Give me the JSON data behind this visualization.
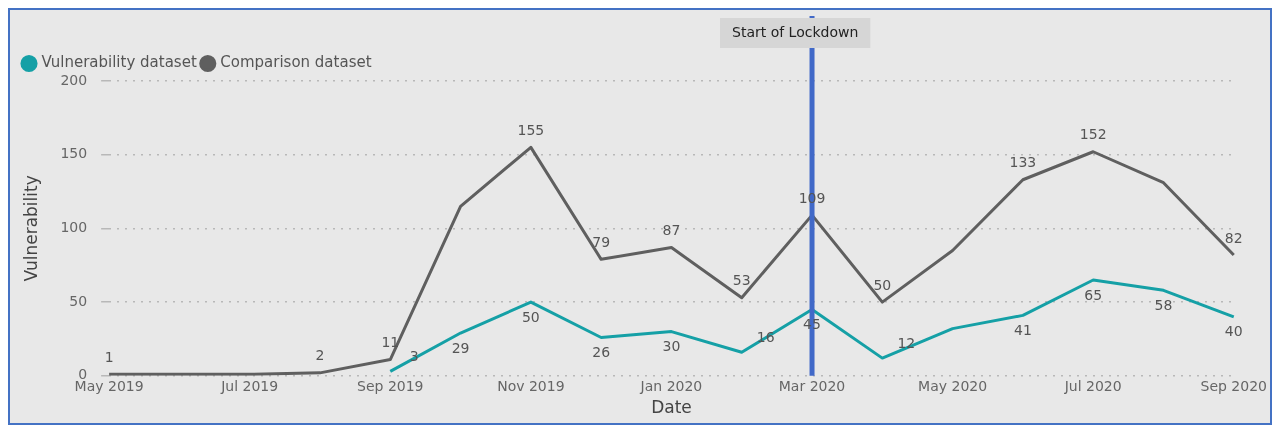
{
  "chart_data": {
    "type": "line",
    "xlabel": "Date",
    "ylabel": "Vulnerability",
    "categories": [
      "May 2019",
      null,
      "Jul 2019",
      null,
      "Sep 2019",
      null,
      "Nov 2019",
      null,
      "Jan 2020",
      null,
      "Mar 2020",
      null,
      "May 2020",
      null,
      "Jul 2020",
      null,
      "Sep 2020"
    ],
    "series": [
      {
        "name": "Vulnerability dataset",
        "color": "#15a0a6",
        "values": [
          null,
          null,
          null,
          null,
          3,
          29,
          50,
          26,
          30,
          16,
          45,
          12,
          32,
          41,
          65,
          58,
          40
        ],
        "value_labels": [
          null,
          null,
          null,
          null,
          "3",
          "29",
          "50",
          "26",
          "30",
          "16",
          "45",
          "12",
          null,
          "41",
          "65",
          "58",
          "40"
        ]
      },
      {
        "name": "Comparison dataset",
        "color": "#5f5f5f",
        "values": [
          1,
          1,
          1,
          2,
          11,
          115,
          155,
          79,
          87,
          53,
          109,
          50,
          85,
          133,
          152,
          131,
          82
        ],
        "value_labels": [
          "1",
          null,
          null,
          "2",
          "11",
          null,
          "155",
          "79",
          "87",
          "53",
          "109",
          "50",
          null,
          "133",
          "152",
          null,
          "82"
        ]
      }
    ],
    "ylim": [
      0,
      200
    ],
    "yticks": [
      0,
      50,
      100,
      150,
      200
    ],
    "grid": "y",
    "legend": "top left",
    "marker": "none",
    "line_style": "solid",
    "ref_lines": [
      {
        "axis": "x",
        "value": "Mar 2020",
        "label": "Start of Lockdown",
        "color": "#4169c8"
      }
    ]
  }
}
